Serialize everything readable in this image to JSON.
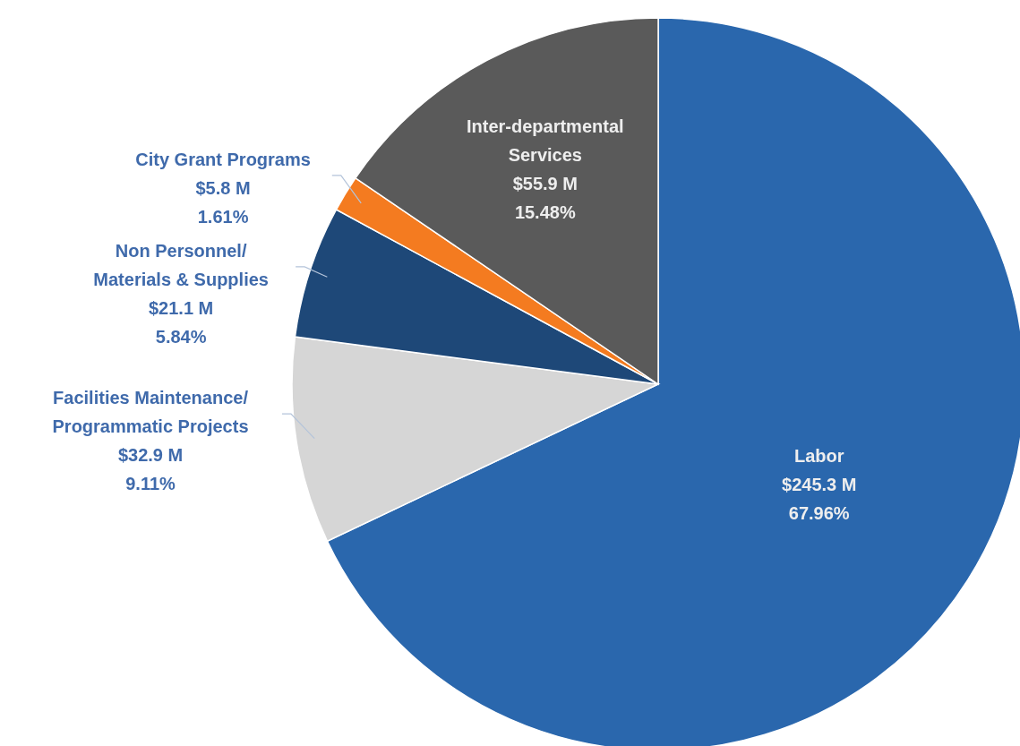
{
  "chart_data": {
    "type": "pie",
    "categories": [
      "Labor",
      "Facilities Maintenance/\nProgrammatic Projects",
      "Non Personnel/\nMaterials & Supplies",
      "City Grant Programs",
      "Inter-departmental\nServices"
    ],
    "values": [
      245.3,
      32.9,
      21.1,
      5.8,
      55.9
    ],
    "colors": [
      "#2a67ad",
      "#d6d6d6",
      "#1e4878",
      "#f47b20",
      "#5a5a5a"
    ],
    "value_labels": [
      "$245.3 M\n67.96%",
      "$32.9 M\n9.11%",
      "$21.1 M\n5.84%",
      "$5.8 M\n1.61%",
      "$55.9 M\n15.48%"
    ]
  }
}
